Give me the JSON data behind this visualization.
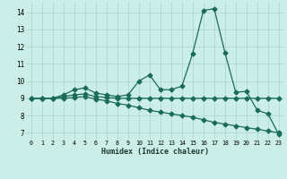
{
  "xlabel": "Humidex (Indice chaleur)",
  "bg_color": "#cceee8",
  "grid_color": "#aad4cc",
  "line_color": "#1a6b5a",
  "xlim": [
    -0.5,
    23.5
  ],
  "ylim": [
    6.6,
    14.6
  ],
  "xticks": [
    0,
    1,
    2,
    3,
    4,
    5,
    6,
    7,
    8,
    9,
    10,
    11,
    12,
    13,
    14,
    15,
    16,
    17,
    18,
    19,
    20,
    21,
    22,
    23
  ],
  "yticks": [
    7,
    8,
    9,
    10,
    11,
    12,
    13,
    14
  ],
  "series1_x": [
    0,
    1,
    2,
    3,
    4,
    5,
    6,
    7,
    8,
    9,
    10,
    11,
    12,
    13,
    14,
    15,
    16,
    17,
    18,
    19,
    20,
    21,
    22,
    23
  ],
  "series1_y": [
    9.0,
    9.0,
    9.0,
    9.2,
    9.5,
    9.6,
    9.3,
    9.2,
    9.1,
    9.2,
    10.0,
    10.35,
    9.5,
    9.5,
    9.7,
    11.6,
    14.1,
    14.2,
    11.65,
    9.35,
    9.4,
    8.3,
    8.1,
    6.9
  ],
  "series2_x": [
    0,
    1,
    2,
    3,
    4,
    5,
    6,
    7,
    8,
    9,
    10,
    11,
    12,
    13,
    14,
    15,
    16,
    17,
    18,
    19,
    20,
    21,
    22,
    23
  ],
  "series2_y": [
    9.0,
    9.0,
    9.0,
    9.0,
    9.05,
    9.1,
    8.95,
    8.85,
    8.7,
    8.6,
    8.45,
    8.3,
    8.2,
    8.1,
    8.0,
    7.9,
    7.75,
    7.6,
    7.5,
    7.4,
    7.3,
    7.2,
    7.1,
    7.0
  ],
  "series3_x": [
    0,
    1,
    2,
    3,
    4,
    5,
    6,
    7,
    8,
    9,
    10,
    11,
    12,
    13,
    14,
    15,
    16,
    17,
    18,
    19,
    20,
    21,
    22,
    23
  ],
  "series3_y": [
    9.0,
    9.0,
    9.0,
    9.1,
    9.2,
    9.25,
    9.1,
    9.05,
    9.0,
    9.0,
    9.0,
    9.0,
    9.0,
    9.0,
    9.0,
    9.0,
    9.0,
    9.0,
    9.0,
    9.0,
    9.0,
    9.0,
    9.0,
    9.0
  ],
  "markersize": 2.5,
  "linewidth": 0.9
}
